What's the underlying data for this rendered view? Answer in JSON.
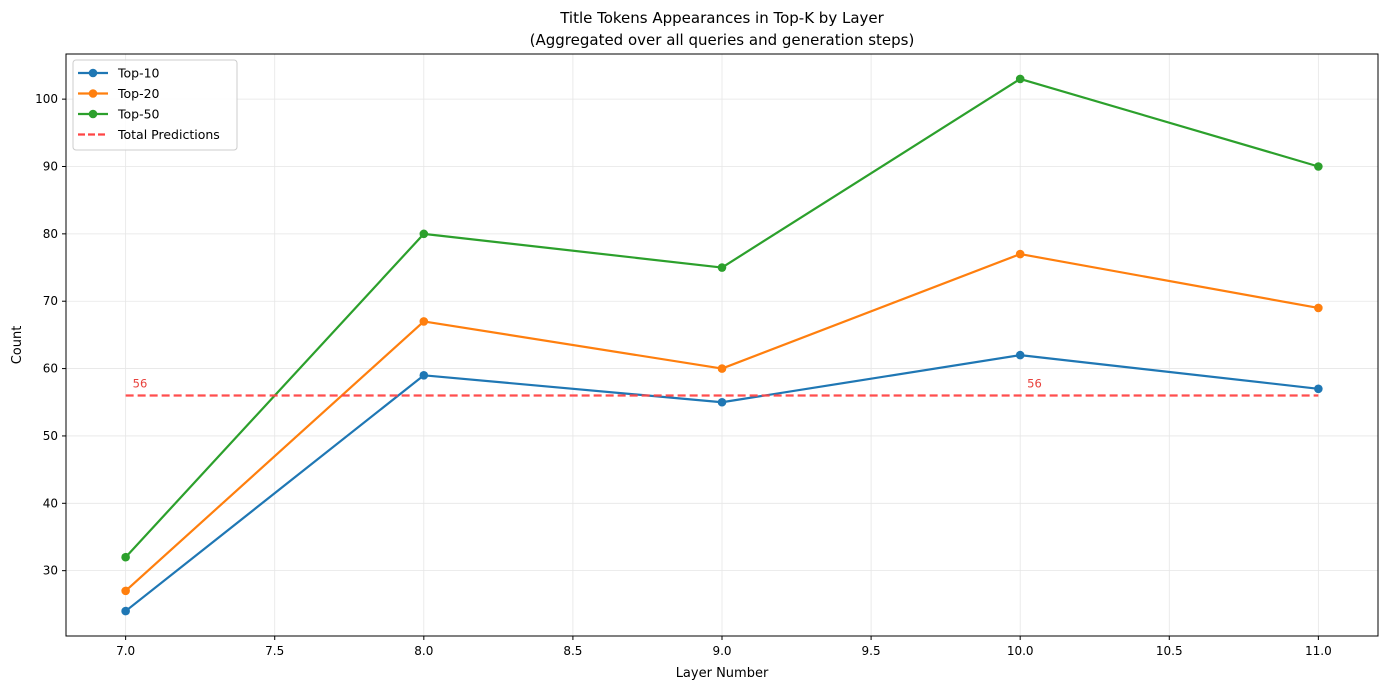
{
  "chart_data": {
    "type": "line",
    "title": "Title Tokens Appearances in Top-K by Layer",
    "subtitle": "(Aggregated over all queries and generation steps)",
    "xlabel": "Layer Number",
    "ylabel": "Count",
    "x": [
      7.0,
      8.0,
      9.0,
      10.0,
      11.0
    ],
    "xlim": [
      6.8,
      11.2
    ],
    "ylim": [
      20.3,
      106.7
    ],
    "xticks": [
      7.0,
      7.5,
      8.0,
      8.5,
      9.0,
      9.5,
      10.0,
      10.5,
      11.0
    ],
    "xtick_labels": [
      "7.0",
      "7.5",
      "8.0",
      "8.5",
      "9.0",
      "9.5",
      "10.0",
      "10.5",
      "11.0"
    ],
    "yticks": [
      30,
      40,
      50,
      60,
      70,
      80,
      90,
      100
    ],
    "ytick_labels": [
      "30",
      "40",
      "50",
      "60",
      "70",
      "80",
      "90",
      "100"
    ],
    "grid": true,
    "legend_position": "top-left",
    "series": [
      {
        "name": "Top-10",
        "values": [
          24,
          59,
          55,
          62,
          57
        ],
        "color": "#1f77b4",
        "style": "solid",
        "marker": "circle"
      },
      {
        "name": "Top-20",
        "values": [
          27,
          67,
          60,
          77,
          69
        ],
        "color": "#ff7f0e",
        "style": "solid",
        "marker": "circle"
      },
      {
        "name": "Top-50",
        "values": [
          32,
          80,
          75,
          103,
          90
        ],
        "color": "#2ca02c",
        "style": "solid",
        "marker": "circle"
      },
      {
        "name": "Total Predictions",
        "values": [
          56,
          56,
          56,
          56,
          56
        ],
        "color": "#ff4444",
        "style": "dashed",
        "marker": "none"
      }
    ],
    "annotations": [
      {
        "x": 7.0,
        "y": 56,
        "text": "56"
      },
      {
        "x": 10.0,
        "y": 56,
        "text": "56"
      }
    ]
  }
}
